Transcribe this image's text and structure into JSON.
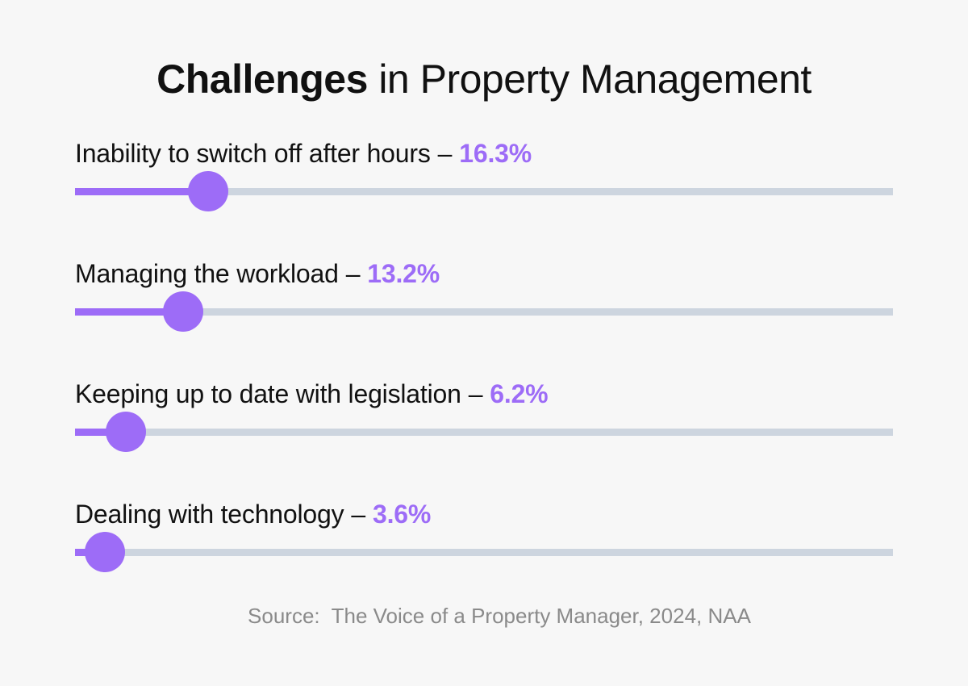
{
  "title": {
    "strong": "Challenges",
    "rest": "in Property Management"
  },
  "chart_data": {
    "type": "bar",
    "orientation": "horizontal",
    "items": [
      {
        "label": "Inability to switch off after hours",
        "value": 16.3,
        "value_text": "16.3%"
      },
      {
        "label": "Managing the workload",
        "value": 13.2,
        "value_text": "13.2%"
      },
      {
        "label": "Keeping up to date with legislation",
        "value": 6.2,
        "value_text": "6.2%"
      },
      {
        "label": "Dealing with technology",
        "value": 3.6,
        "value_text": "3.6%"
      }
    ],
    "separator": "–",
    "xlim": [
      0,
      100
    ],
    "accent_color": "#9d6cf7",
    "track_color": "#cdd5df"
  },
  "source": "Source:  The Voice of a Property Manager, 2024, NAA"
}
